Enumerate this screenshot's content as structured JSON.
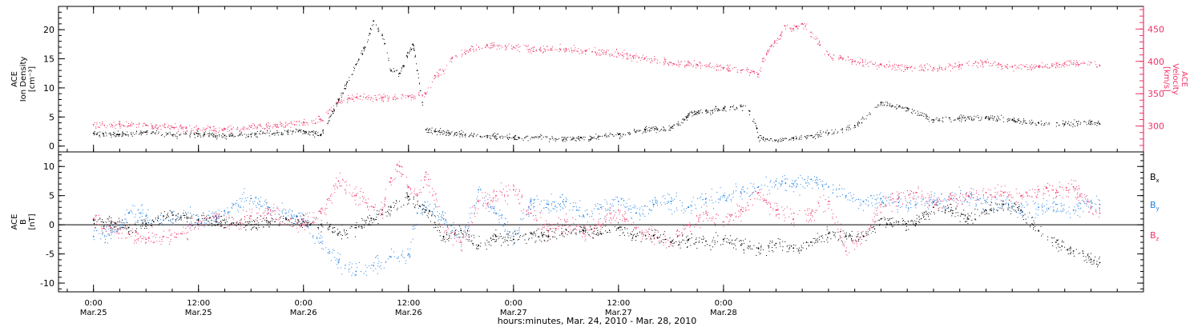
{
  "chart_data": [
    {
      "type": "scatter",
      "panel": "top",
      "left_axis": {
        "label_lines": [
          "ACE",
          "Ion Density",
          "[cm⁻³]"
        ],
        "ylim": [
          -1,
          24
        ],
        "ticks": [
          0,
          5,
          10,
          15,
          20
        ]
      },
      "right_axis": {
        "label_lines": [
          "ACE",
          "Velocity",
          "[km/s]"
        ],
        "ylim": [
          260,
          485
        ],
        "ticks": [
          300,
          350,
          400,
          450
        ]
      },
      "series": [
        {
          "name": "Ion Density",
          "axis": "left",
          "color": "#000000",
          "x_hours": [
            0,
            3,
            6,
            9,
            12,
            15,
            18,
            21,
            24,
            26,
            28,
            29,
            30,
            31,
            32,
            33,
            34,
            35,
            35.8,
            36.5,
            37,
            38,
            39,
            42,
            45,
            48,
            51,
            54,
            57,
            60,
            63,
            66,
            67.5,
            68,
            69,
            70,
            72,
            74,
            75,
            75.8,
            76,
            77,
            78,
            80,
            82,
            84,
            87,
            90,
            93,
            96,
            99,
            102,
            105,
            108,
            111,
            114,
            115
          ],
          "values": [
            2.2,
            2.0,
            2.4,
            1.9,
            2.1,
            1.8,
            2.0,
            2.3,
            2.6,
            2.0,
            8.0,
            11.0,
            14.0,
            17.0,
            21.5,
            19.0,
            13.0,
            12.5,
            15.5,
            17.5,
            13.0,
            2.8,
            2.5,
            2.1,
            1.8,
            1.5,
            1.6,
            1.2,
            1.4,
            2.0,
            2.8,
            3.2,
            4.5,
            5.5,
            5.8,
            6.0,
            6.5,
            6.8,
            6.0,
            3.0,
            1.5,
            1.2,
            1.0,
            1.3,
            1.8,
            2.2,
            3.5,
            7.5,
            6.5,
            4.5,
            4.8,
            5.0,
            4.5,
            4.0,
            3.8,
            4.2,
            3.8
          ]
        },
        {
          "name": "Velocity",
          "axis": "right",
          "color": "#ee3366",
          "x_hours": [
            0,
            3,
            6,
            9,
            12,
            15,
            18,
            21,
            24,
            26,
            27,
            28,
            30,
            33,
            36,
            38,
            39,
            40,
            41,
            43,
            45,
            48,
            51,
            54,
            57,
            60,
            63,
            66,
            69,
            72,
            74,
            75.5,
            76,
            76.5,
            77.5,
            78.5,
            79,
            80,
            81,
            82,
            83,
            84,
            87,
            90,
            93,
            96,
            99,
            102,
            105,
            108,
            111,
            114,
            115
          ],
          "values": [
            302,
            303,
            301,
            298,
            296,
            295,
            298,
            302,
            305,
            310,
            325,
            338,
            344,
            344,
            346,
            350,
            378,
            385,
            405,
            418,
            425,
            422,
            418,
            420,
            415,
            412,
            405,
            398,
            395,
            390,
            386,
            384,
            380,
            404,
            425,
            440,
            455,
            450,
            458,
            445,
            425,
            410,
            400,
            395,
            390,
            390,
            395,
            398,
            392,
            392,
            396,
            398,
            393
          ]
        }
      ]
    },
    {
      "type": "scatter",
      "panel": "bottom",
      "left_axis": {
        "label_lines": [
          "ACE",
          "B",
          "[nT]"
        ],
        "ylim": [
          -11.5,
          12.5
        ],
        "ticks": [
          -10,
          -5,
          0,
          5,
          10
        ]
      },
      "legend_position": "right",
      "series": [
        {
          "name": "Bx",
          "name_main": "B",
          "name_sub": "x",
          "color": "#000000",
          "x_hours": [
            0,
            2,
            4,
            6,
            8,
            10,
            12,
            14,
            16,
            18,
            20,
            22,
            24,
            26,
            27,
            28,
            30,
            32,
            34,
            36,
            38,
            40,
            42,
            44,
            46,
            48,
            50,
            52,
            54,
            56,
            58,
            60,
            62,
            64,
            66,
            68,
            70,
            72,
            74,
            76,
            78,
            80,
            82,
            84,
            86,
            88,
            90,
            92,
            94,
            96,
            98,
            100,
            102,
            104,
            106,
            108,
            110,
            112,
            114,
            115
          ],
          "values": [
            0.8,
            0.3,
            -0.5,
            0.2,
            1.5,
            1.2,
            0.8,
            0.5,
            0.3,
            0.0,
            0.5,
            1.0,
            0.6,
            0.0,
            -0.3,
            -1.5,
            -0.5,
            1.0,
            3.0,
            4.8,
            2.5,
            -2.0,
            -1.0,
            -3.5,
            -2.0,
            -2.5,
            -1.5,
            -2.0,
            -0.8,
            -1.0,
            -1.5,
            -0.5,
            -2.0,
            -1.8,
            -3.0,
            -2.5,
            -2.8,
            -2.5,
            -3.5,
            -4.0,
            -3.2,
            -4.0,
            -3.0,
            -1.5,
            -2.0,
            -2.0,
            1.0,
            0.5,
            0.2,
            3.0,
            2.5,
            1.0,
            2.5,
            3.5,
            2.5,
            -1.0,
            -3.0,
            -4.5,
            -6.0,
            -6.5
          ]
        },
        {
          "name": "By",
          "name_main": "B",
          "name_sub": "y",
          "color": "#1f7fe0",
          "x_hours": [
            0,
            2,
            4,
            6,
            8,
            10,
            12,
            14,
            16,
            18,
            20,
            22,
            24,
            26,
            28,
            30,
            32,
            34,
            36,
            37,
            38,
            40,
            42,
            44,
            46,
            48,
            50,
            52,
            54,
            56,
            58,
            60,
            62,
            64,
            66,
            68,
            70,
            72,
            74,
            76,
            78,
            80,
            82,
            84,
            86,
            88,
            90,
            92,
            94,
            96,
            98,
            100,
            102,
            104,
            106,
            108,
            110,
            112,
            114,
            115
          ],
          "values": [
            -2.0,
            -1.0,
            2.0,
            1.5,
            0.8,
            1.5,
            1.0,
            0.8,
            3.5,
            4.5,
            3.0,
            2.0,
            1.0,
            -3.0,
            -6.5,
            -8.0,
            -7.0,
            -5.5,
            -5.0,
            2.0,
            3.0,
            1.0,
            -3.0,
            6.0,
            2.0,
            -2.0,
            4.0,
            3.5,
            4.0,
            1.5,
            3.0,
            4.0,
            2.0,
            3.5,
            4.0,
            3.0,
            4.5,
            5.0,
            5.5,
            6.5,
            7.5,
            7.0,
            7.8,
            6.5,
            5.0,
            4.0,
            4.5,
            3.8,
            3.5,
            4.0,
            4.5,
            5.0,
            4.0,
            3.5,
            2.5,
            3.0,
            3.5,
            2.5,
            4.0,
            3.5
          ]
        },
        {
          "name": "Bz",
          "name_main": "B",
          "name_sub": "z",
          "color": "#ee3366",
          "x_hours": [
            0,
            2,
            4,
            6,
            8,
            10,
            12,
            14,
            16,
            18,
            20,
            22,
            24,
            26,
            28,
            30,
            32,
            33,
            34,
            35,
            36,
            37,
            38,
            40,
            42,
            44,
            46,
            48,
            50,
            52,
            54,
            56,
            58,
            60,
            62,
            64,
            66,
            68,
            70,
            72,
            74,
            76,
            78,
            80,
            82,
            84,
            86,
            88,
            90,
            92,
            94,
            96,
            98,
            100,
            102,
            104,
            106,
            108,
            110,
            112,
            114,
            115
          ],
          "values": [
            1.0,
            -0.5,
            -1.5,
            -2.5,
            -2.0,
            -1.5,
            0.5,
            1.5,
            0.0,
            1.5,
            2.0,
            1.0,
            0.0,
            2.0,
            7.5,
            5.0,
            3.0,
            2.5,
            8.0,
            10.0,
            6.5,
            5.0,
            9.0,
            0.0,
            -3.0,
            4.0,
            5.0,
            6.0,
            2.0,
            -1.0,
            0.5,
            -1.5,
            0.0,
            2.5,
            -0.5,
            -2.0,
            -3.0,
            0.0,
            2.0,
            0.5,
            2.5,
            5.5,
            2.5,
            1.0,
            2.0,
            4.0,
            -4.5,
            -2.0,
            3.5,
            4.5,
            5.5,
            3.8,
            4.5,
            5.0,
            5.5,
            5.5,
            5.0,
            6.0,
            5.5,
            6.5,
            3.0,
            2.0
          ]
        }
      ]
    }
  ],
  "x_axis": {
    "xlim_hours": [
      -4,
      120
    ],
    "title": "hours:minutes, Mar. 24, 2010 - Mar. 28, 2010",
    "ticks": [
      {
        "hour": 0,
        "time": "0:00",
        "date": "Mar.25"
      },
      {
        "hour": 12,
        "time": "12:00",
        "date": "Mar.25"
      },
      {
        "hour": 24,
        "time": "0:00",
        "date": "Mar.26"
      },
      {
        "hour": 36,
        "time": "12:00",
        "date": "Mar.26"
      },
      {
        "hour": 48,
        "time": "0:00",
        "date": "Mar.27"
      },
      {
        "hour": 60,
        "time": "12:00",
        "date": "Mar.27"
      },
      {
        "hour": 72,
        "time": "0:00",
        "date": "Mar.28"
      }
    ]
  }
}
